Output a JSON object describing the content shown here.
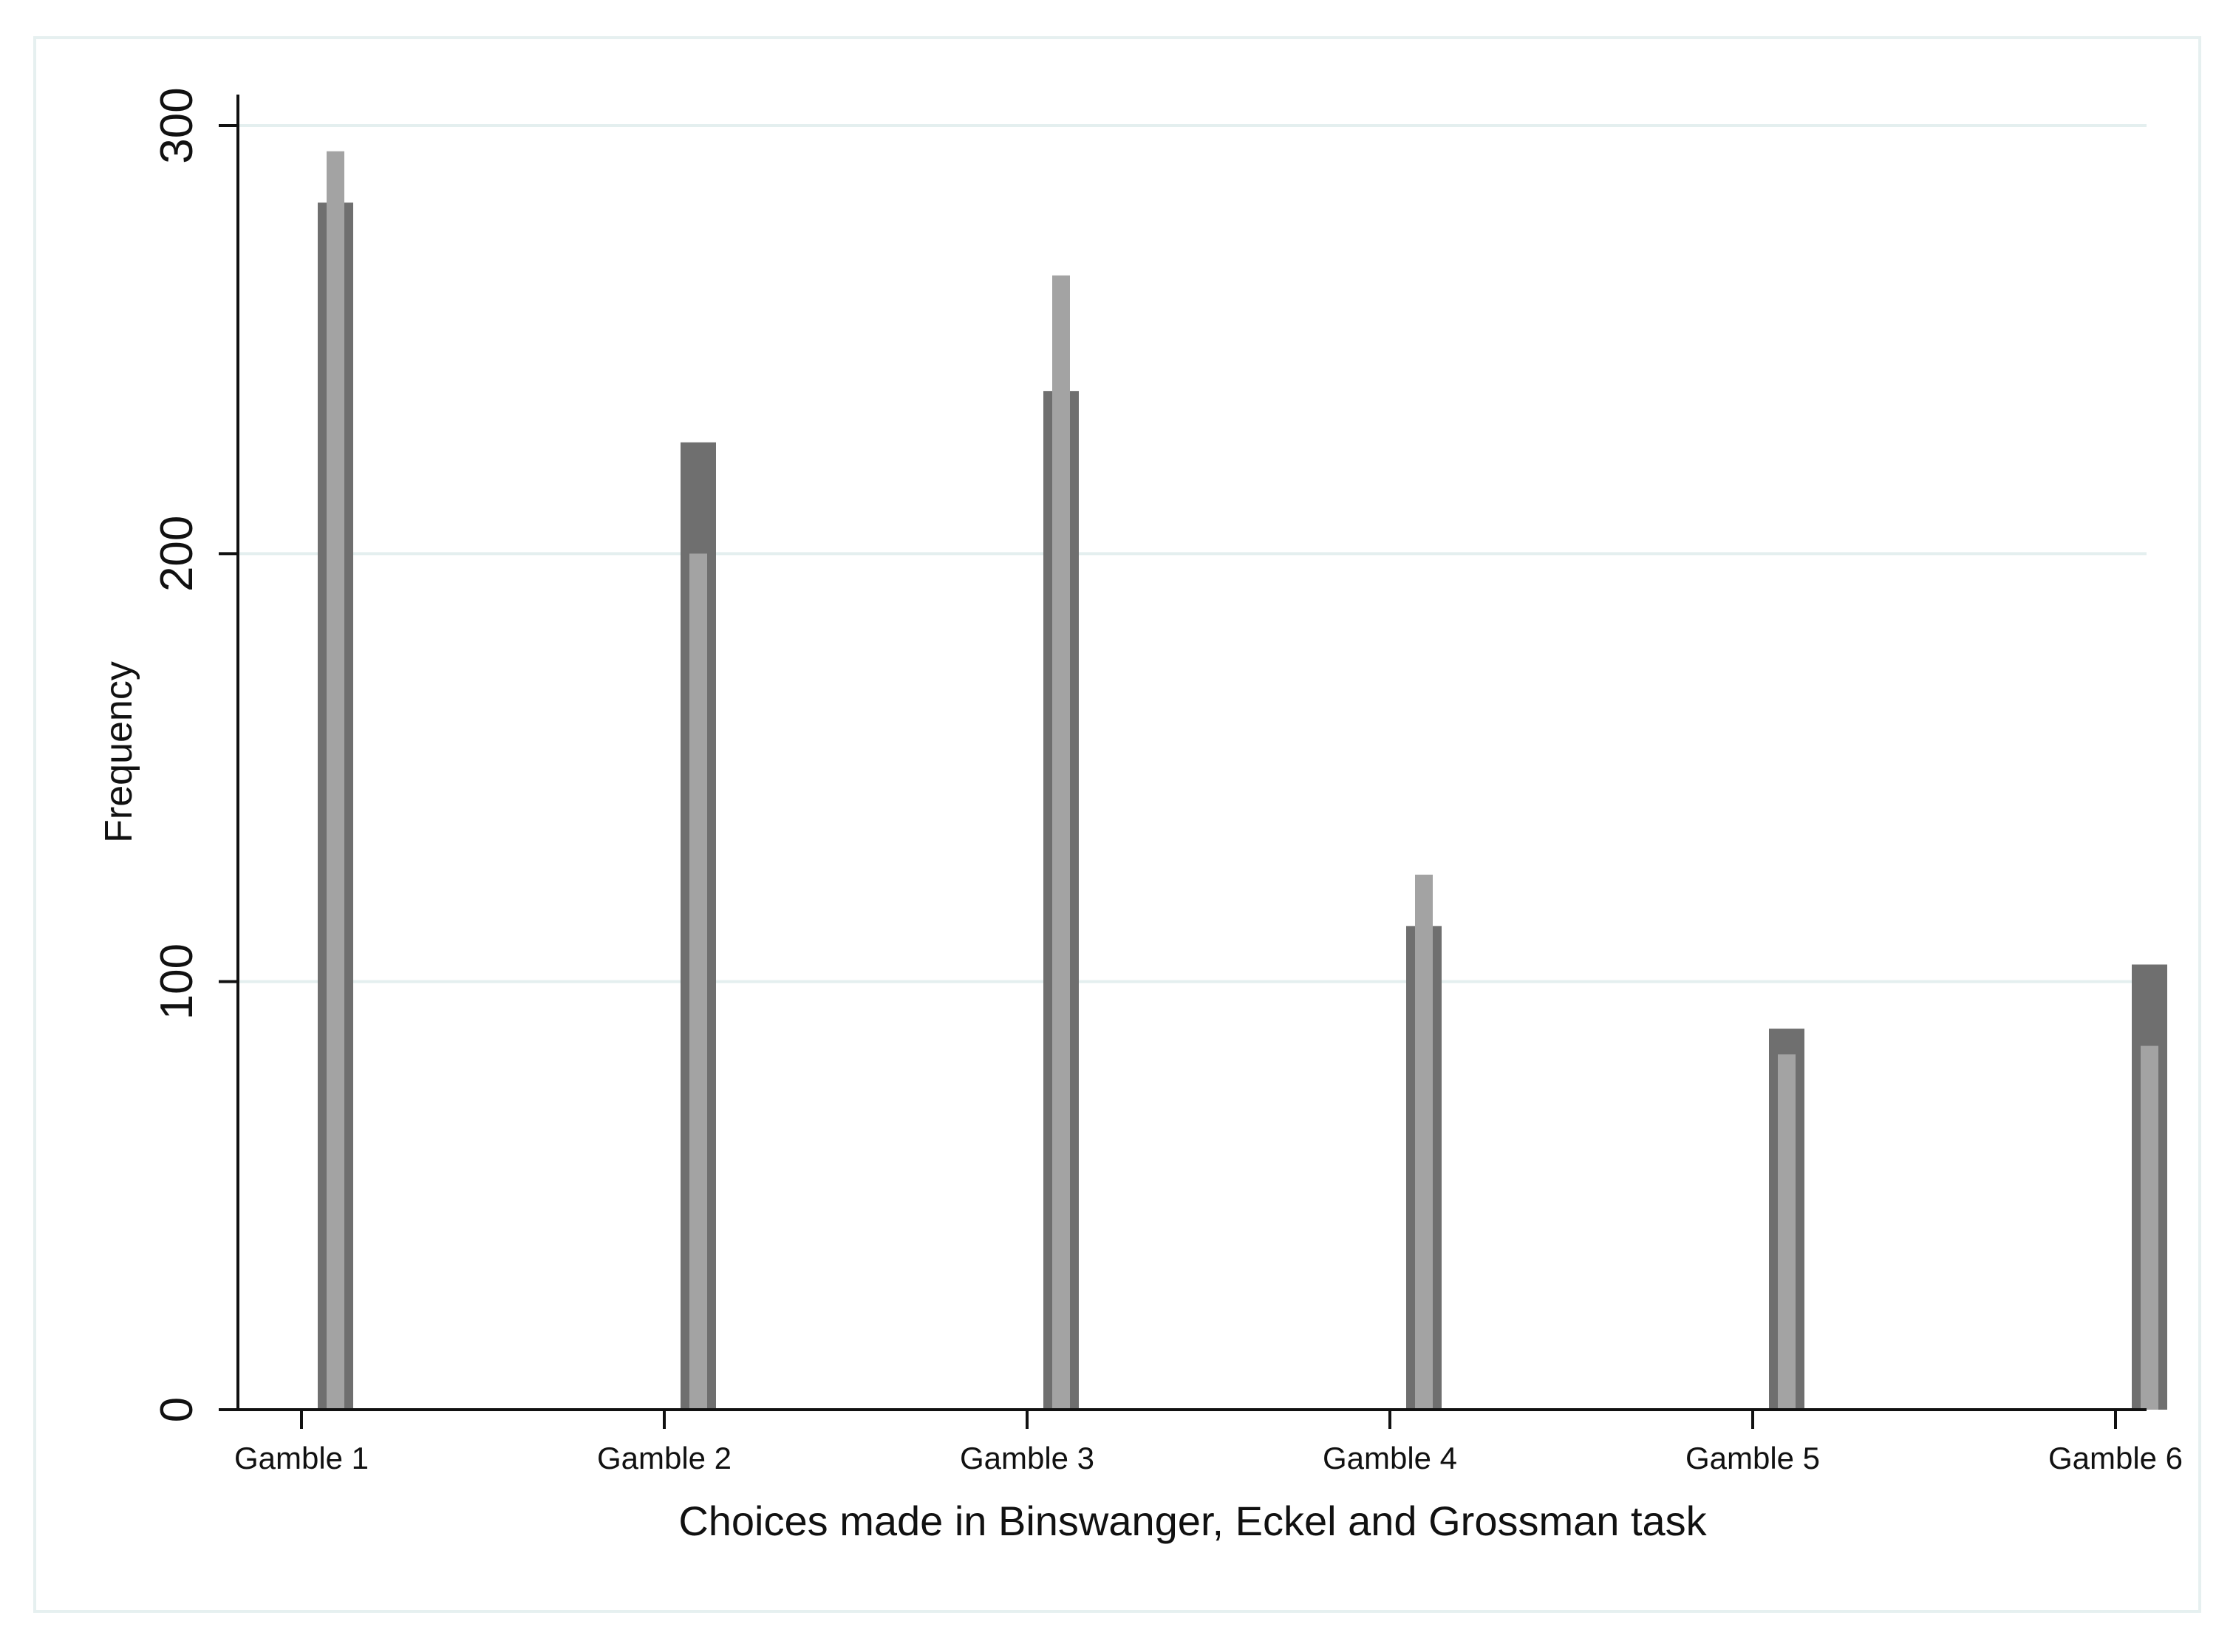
{
  "chart_data": {
    "type": "bar",
    "categories": [
      "Gamble 1",
      "Gamble 2",
      "Gamble 3",
      "Gamble 4",
      "Gamble 5",
      "Gamble 6"
    ],
    "series": [
      {
        "values": [
          282,
          226,
          238,
          113,
          89,
          104
        ]
      },
      {
        "values": [
          294,
          200,
          265,
          125,
          83,
          85
        ]
      }
    ],
    "title": "",
    "xlabel": "Choices made in Binswanger, Eckel and Grossman task",
    "ylabel": "Frequency",
    "ylim": [
      0,
      300
    ],
    "yticks": [
      0,
      100,
      200,
      300
    ],
    "grid": true,
    "legend": "none",
    "colors": {
      "series_dark": "#6f6f6f",
      "series_light": "#a3a3a3",
      "gridline": "#e4efef",
      "frame": "#e6f0f0",
      "axis": "#111111"
    }
  }
}
